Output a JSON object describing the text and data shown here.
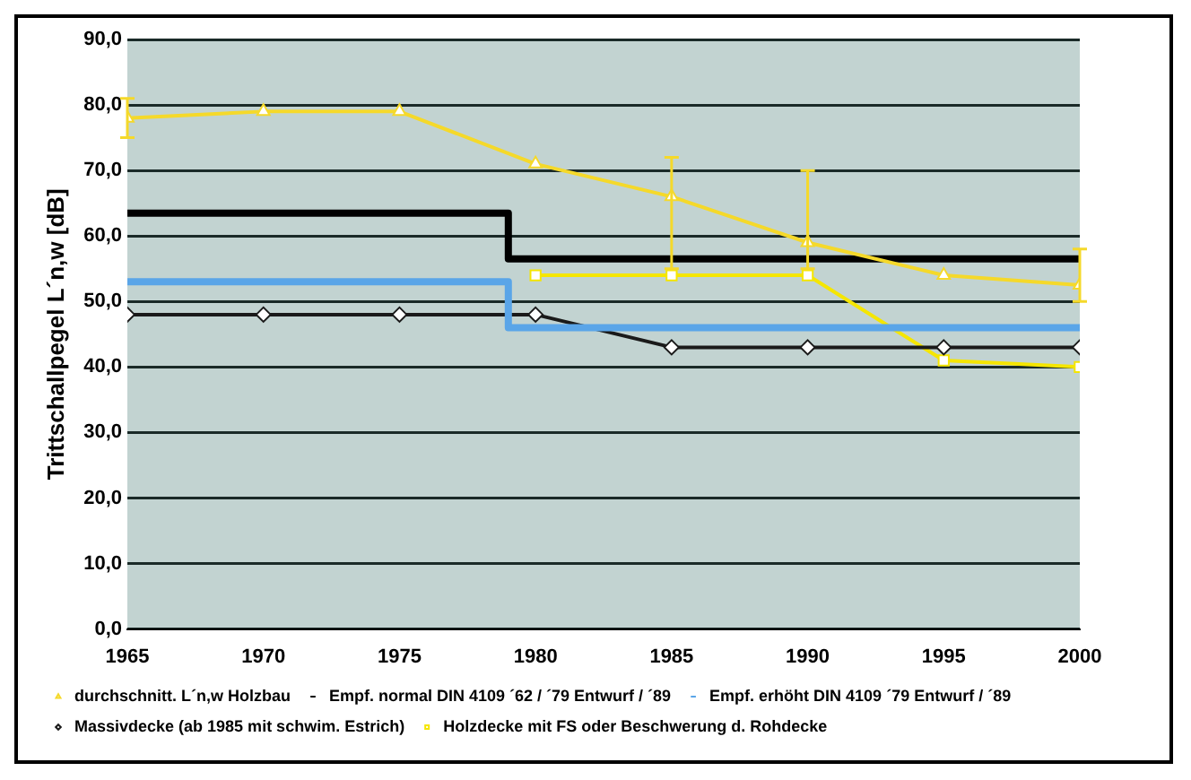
{
  "chart_data": {
    "type": "line",
    "ylabel": "Trittschallpegel L´n,w [dB]",
    "xlim": [
      1965,
      2000
    ],
    "xticks": [
      1965,
      1970,
      1975,
      1980,
      1985,
      1990,
      1995,
      2000
    ],
    "ylim": [
      0,
      90
    ],
    "yticks": [
      {
        "value": 0,
        "label": "0,0"
      },
      {
        "value": 10,
        "label": "10,0"
      },
      {
        "value": 20,
        "label": "20,0"
      },
      {
        "value": 30,
        "label": "30,0"
      },
      {
        "value": 40,
        "label": "40,0"
      },
      {
        "value": 50,
        "label": "50,0"
      },
      {
        "value": 60,
        "label": "60,0"
      },
      {
        "value": 70,
        "label": "70,0"
      },
      {
        "value": 80,
        "label": "80,0"
      },
      {
        "value": 90,
        "label": "90,0"
      }
    ],
    "grid": "y",
    "legend": "bottom",
    "series": [
      {
        "name": "durchschnitt. L´n,w Holzbau",
        "type": "line",
        "color": "#f5d92a",
        "marker": "triangle",
        "x": [
          1965,
          1970,
          1975,
          1980,
          1985,
          1990,
          1995,
          2000
        ],
        "values": [
          78,
          79,
          79,
          71,
          66,
          59,
          54,
          52.5
        ],
        "errors": [
          [
            75,
            81
          ],
          null,
          null,
          null,
          [
            55,
            72
          ],
          [
            55,
            70
          ],
          null,
          [
            50,
            58
          ]
        ]
      },
      {
        "name": "Empf. normal DIN 4109 ´62 / ´79 Entwurf / ´89",
        "type": "step",
        "color": "#000000",
        "marker": "none",
        "x": [
          1965,
          1979,
          2000
        ],
        "values": [
          63.5,
          56.5,
          56.5
        ]
      },
      {
        "name": "Empf. erhöht DIN 4109 ´79 Entwurf / ´89",
        "type": "step",
        "color": "#5aa5e8",
        "marker": "none",
        "x": [
          1965,
          1979,
          2000
        ],
        "values": [
          53,
          46,
          46
        ]
      },
      {
        "name": "Massivdecke (ab 1985 mit schwim. Estrich)",
        "type": "line",
        "color": "#1a1a1a",
        "marker": "diamond",
        "x": [
          1965,
          1970,
          1975,
          1980,
          1985,
          1990,
          1995,
          2000
        ],
        "values": [
          48,
          48,
          48,
          48,
          43,
          43,
          43,
          43
        ]
      },
      {
        "name": "Holzdecke mit FS oder Beschwerung d. Rohdecke",
        "type": "line",
        "color": "#f5e600",
        "marker": "square",
        "x": [
          1980,
          1985,
          1990,
          1995,
          2000
        ],
        "values": [
          54,
          54,
          54,
          41,
          40
        ]
      }
    ]
  }
}
